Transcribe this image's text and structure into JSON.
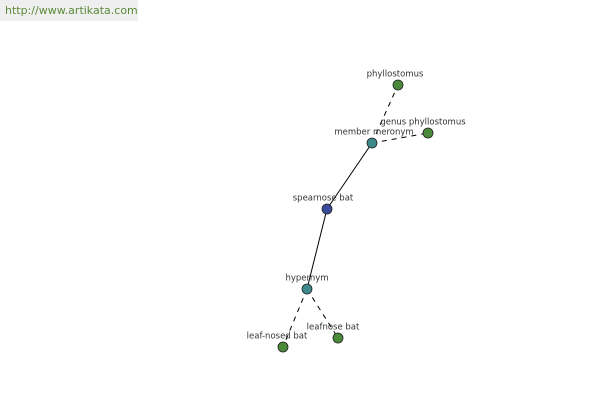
{
  "header": {
    "url": "http://www.artikata.com"
  },
  "nodes": [
    {
      "label": "phyllostomus"
    },
    {
      "label": "genus phyllostomus"
    },
    {
      "label": "member meronym"
    },
    {
      "label": "spearnose bat"
    },
    {
      "label": "hypernym"
    },
    {
      "label": "leaf-nosed bat"
    },
    {
      "label": "leafnose bat"
    }
  ]
}
